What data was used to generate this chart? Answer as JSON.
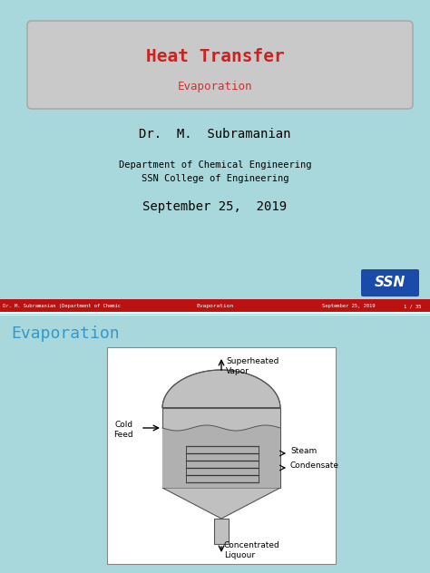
{
  "bg_color": "#a8d8dc",
  "title_box_color": "#c9c9c9",
  "title_text": "Heat Transfer",
  "title_color": "#cc2222",
  "subtitle_text": "Evaporation",
  "subtitle_color": "#cc3333",
  "author": "Dr.  M.  Subramanian",
  "dept1": "Department of Chemical Engineering",
  "dept2": "SSN College of Engineering",
  "date": "September 25,  2019",
  "footer_bg": "#bb1111",
  "footer_text1": "Dr. M. Subramanian (Department of Chemic",
  "footer_text2": "Evaporation",
  "footer_text3": "September 25, 2019",
  "footer_text4": "1 / 35",
  "ssn_color_blue": "#1a4aaa",
  "slide2_title": "Evaporation",
  "slide2_title_color": "#3399cc",
  "diagram_bg": "#ffffff",
  "diagram_border": "#aaaaaa",
  "vessel_color": "#c0c0c0",
  "vessel_edge": "#555555"
}
